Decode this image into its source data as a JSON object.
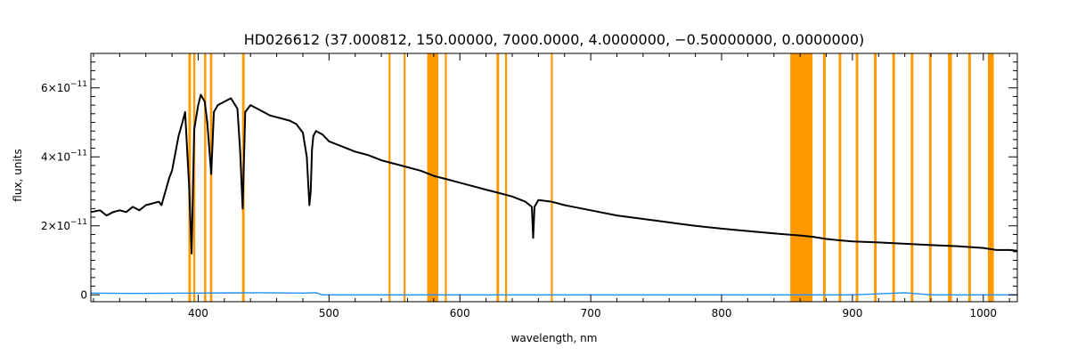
{
  "chart_data": {
    "type": "line",
    "title": "HD026612   (37.000812, 150.00000, 7000.0000, 4.0000000, −0.50000000, 0.0000000)",
    "xlabel": "wavelength, nm",
    "ylabel": "flux, units",
    "xlim": [
      318,
      1026
    ],
    "ylim": [
      -2e-12,
      7e-11
    ],
    "x_ticks": [
      {
        "value": 400,
        "label": "400"
      },
      {
        "value": 500,
        "label": "500"
      },
      {
        "value": 600,
        "label": "600"
      },
      {
        "value": 700,
        "label": "700"
      },
      {
        "value": 800,
        "label": "800"
      },
      {
        "value": 900,
        "label": "900"
      },
      {
        "value": 1000,
        "label": "1000"
      }
    ],
    "y_ticks": [
      {
        "value": 0,
        "mantissa": "0",
        "exp": ""
      },
      {
        "value": 2e-11,
        "mantissa": "2×10",
        "exp": "−11"
      },
      {
        "value": 4e-11,
        "mantissa": "4×10",
        "exp": "−11"
      },
      {
        "value": 6e-11,
        "mantissa": "6×10",
        "exp": "−11"
      }
    ],
    "grid": false,
    "colors": {
      "flux": "#000000",
      "error": "#1e90ff",
      "mask": "#ff9900"
    },
    "masked_bands": [
      [
        392.5,
        394.5
      ],
      [
        396.2,
        397.8
      ],
      [
        404.5,
        406.2
      ],
      [
        409.0,
        410.8
      ],
      [
        433.5,
        435.5
      ],
      [
        545.5,
        547.0
      ],
      [
        557.0,
        558.5
      ],
      [
        575.0,
        583.5
      ],
      [
        588.5,
        590.0
      ],
      [
        628.0,
        630.0
      ],
      [
        634.5,
        636.0
      ],
      [
        669.5,
        671.0
      ],
      [
        852.5,
        869.5
      ],
      [
        877.5,
        879.5
      ],
      [
        889.5,
        891.5
      ],
      [
        902.5,
        904.5
      ],
      [
        916.5,
        918.5
      ],
      [
        930.5,
        932.5
      ],
      [
        944.5,
        946.5
      ],
      [
        958.5,
        960.5
      ],
      [
        973.0,
        976.0
      ],
      [
        988.5,
        990.5
      ],
      [
        1003.5,
        1008.0
      ]
    ],
    "series": [
      {
        "x": [
          318,
          325,
          330,
          335,
          340,
          345,
          350,
          355,
          360,
          365,
          370,
          372,
          375,
          378,
          380,
          383,
          385,
          388,
          390,
          393,
          395,
          397,
          400,
          402,
          405,
          407,
          410,
          412,
          415,
          420,
          425,
          430,
          432,
          434,
          436,
          440,
          445,
          450,
          455,
          460,
          465,
          470,
          475,
          480,
          483,
          485,
          486,
          487,
          488,
          490,
          495,
          500,
          510,
          520,
          530,
          540,
          550,
          560,
          570,
          580,
          590,
          600,
          610,
          620,
          630,
          640,
          650,
          655,
          656,
          657,
          660,
          670,
          680,
          700,
          720,
          740,
          760,
          780,
          800,
          820,
          840,
          860,
          870,
          880,
          890,
          900,
          920,
          940,
          960,
          980,
          1000,
          1010,
          1020,
          1026
        ],
        "y": [
          2.4e-11,
          2.45e-11,
          2.3e-11,
          2.4e-11,
          2.45e-11,
          2.4e-11,
          2.55e-11,
          2.45e-11,
          2.6e-11,
          2.65e-11,
          2.7e-11,
          2.6e-11,
          3e-11,
          3.4e-11,
          3.6e-11,
          4.2e-11,
          4.6e-11,
          5e-11,
          5.3e-11,
          3.2e-11,
          1.2e-11,
          4.8e-11,
          5.5e-11,
          5.8e-11,
          5.6e-11,
          5e-11,
          3.5e-11,
          5.3e-11,
          5.5e-11,
          5.6e-11,
          5.7e-11,
          5.4e-11,
          4.2e-11,
          2.5e-11,
          5.3e-11,
          5.5e-11,
          5.4e-11,
          5.3e-11,
          5.2e-11,
          5.15e-11,
          5.1e-11,
          5.05e-11,
          4.95e-11,
          4.7e-11,
          4e-11,
          2.6e-11,
          3e-11,
          4.2e-11,
          4.6e-11,
          4.75e-11,
          4.65e-11,
          4.45e-11,
          4.3e-11,
          4.15e-11,
          4.05e-11,
          3.9e-11,
          3.8e-11,
          3.7e-11,
          3.6e-11,
          3.45e-11,
          3.35e-11,
          3.25e-11,
          3.15e-11,
          3.05e-11,
          2.95e-11,
          2.85e-11,
          2.7e-11,
          2.55e-11,
          1.65e-11,
          2.55e-11,
          2.75e-11,
          2.7e-11,
          2.6e-11,
          2.45e-11,
          2.3e-11,
          2.2e-11,
          2.1e-11,
          2e-11,
          1.92e-11,
          1.85e-11,
          1.78e-11,
          1.72e-11,
          1.68e-11,
          1.62e-11,
          1.58e-11,
          1.55e-11,
          1.52e-11,
          1.48e-11,
          1.44e-11,
          1.41e-11,
          1.36e-11,
          1.3e-11,
          1.3e-11,
          1.28e-11
        ]
      },
      {
        "x": [
          318,
          350,
          400,
          450,
          480,
          490,
          495,
          500,
          600,
          700,
          800,
          900,
          940,
          960,
          1000,
          1026
        ],
        "y": [
          5e-13,
          4e-13,
          5e-13,
          6e-13,
          5e-13,
          6e-13,
          0.0,
          0.0,
          0.0,
          0.0,
          0.0,
          0.0,
          6e-13,
          0.0,
          0.0,
          0.0
        ]
      }
    ]
  }
}
